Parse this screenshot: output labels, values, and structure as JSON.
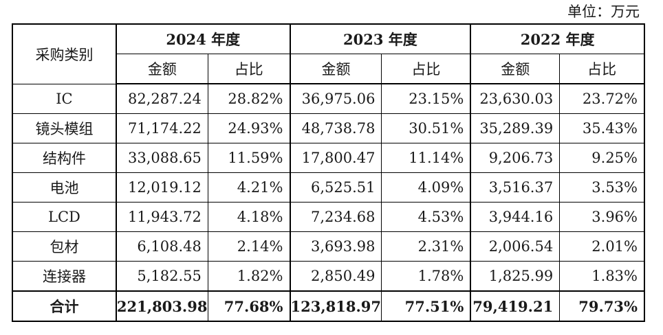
{
  "unit_label": "单位：万元",
  "header": {
    "category_label": "采购类别",
    "years": [
      "2024 年度",
      "2023 年度",
      "2022 年度"
    ],
    "amount_label": "金额",
    "ratio_label": "占比"
  },
  "rows": [
    {
      "category": "IC",
      "values": [
        "82,287.24",
        "28.82%",
        "36,975.06",
        "23.15%",
        "23,630.03",
        "23.72%"
      ]
    },
    {
      "category": "镜头模组",
      "values": [
        "71,174.22",
        "24.93%",
        "48,738.78",
        "30.51%",
        "35,289.39",
        "35.43%"
      ]
    },
    {
      "category": "结构件",
      "values": [
        "33,088.65",
        "11.59%",
        "17,800.47",
        "11.14%",
        "9,206.73",
        "9.25%"
      ]
    },
    {
      "category": "电池",
      "values": [
        "12,019.12",
        "4.21%",
        "6,525.51",
        "4.09%",
        "3,516.37",
        "3.53%"
      ]
    },
    {
      "category": "LCD",
      "values": [
        "11,943.72",
        "4.18%",
        "7,234.68",
        "4.53%",
        "3,944.16",
        "3.96%"
      ]
    },
    {
      "category": "包材",
      "values": [
        "6,108.48",
        "2.14%",
        "3,693.98",
        "2.31%",
        "2,006.54",
        "2.01%"
      ]
    },
    {
      "category": "连接器",
      "values": [
        "5,182.55",
        "1.82%",
        "2,850.49",
        "1.78%",
        "1,825.99",
        "1.83%"
      ]
    }
  ],
  "total": {
    "category": "合计",
    "values": [
      "221,803.98",
      "77.68%",
      "123,818.97",
      "77.51%",
      "79,419.21",
      "79.73%"
    ]
  }
}
